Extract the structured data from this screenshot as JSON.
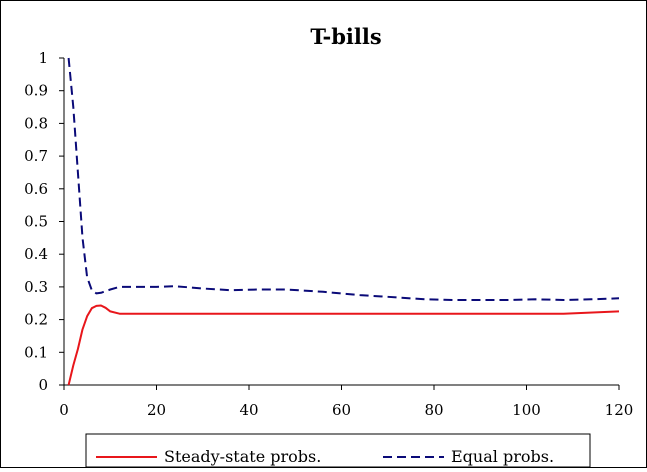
{
  "chart_data": {
    "type": "line",
    "title": "T-bills",
    "xlabel": "",
    "ylabel": "",
    "xlim": [
      0,
      120
    ],
    "ylim": [
      0,
      1
    ],
    "x_ticks": [
      0,
      20,
      40,
      60,
      80,
      100,
      120
    ],
    "y_ticks": [
      0,
      0.1,
      0.2,
      0.3,
      0.4,
      0.5,
      0.6,
      0.7,
      0.8,
      0.9,
      1
    ],
    "grid": false,
    "legend_position": "bottom",
    "series": [
      {
        "name": "Steady-state probs.",
        "color": "#e8161b",
        "style": "solid",
        "x": [
          1,
          2,
          3,
          4,
          5,
          6,
          7,
          8,
          9,
          10,
          12,
          15,
          20,
          40,
          60,
          80,
          100,
          108,
          120
        ],
        "y": [
          0.0,
          0.06,
          0.11,
          0.17,
          0.21,
          0.235,
          0.242,
          0.243,
          0.236,
          0.225,
          0.218,
          0.218,
          0.218,
          0.218,
          0.218,
          0.218,
          0.218,
          0.218,
          0.225
        ]
      },
      {
        "name": "Equal probs.",
        "color": "#0a0a78",
        "style": "dashed",
        "x": [
          1,
          2,
          3,
          4,
          5,
          6,
          7,
          8,
          10,
          12,
          16,
          20,
          24,
          30,
          36,
          42,
          48,
          56,
          64,
          72,
          78,
          84,
          90,
          96,
          102,
          108,
          114,
          120
        ],
        "y": [
          1.0,
          0.85,
          0.65,
          0.45,
          0.33,
          0.29,
          0.28,
          0.282,
          0.292,
          0.3,
          0.3,
          0.3,
          0.302,
          0.295,
          0.29,
          0.292,
          0.292,
          0.285,
          0.275,
          0.268,
          0.262,
          0.26,
          0.26,
          0.26,
          0.262,
          0.26,
          0.262,
          0.265
        ]
      }
    ]
  }
}
